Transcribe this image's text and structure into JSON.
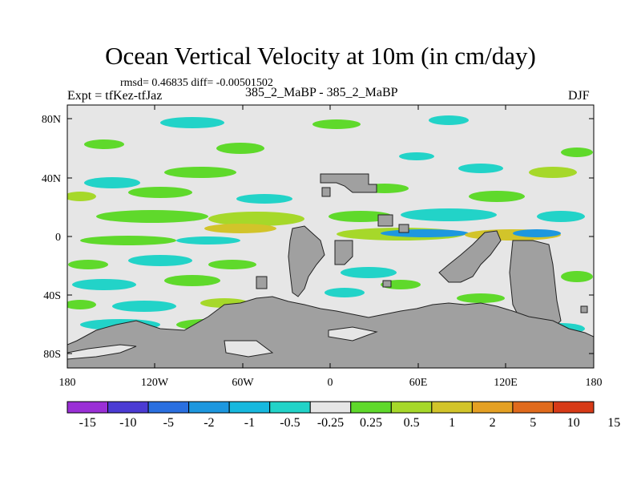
{
  "title": "Ocean Vertical Velocity at 10m (in cm/day)",
  "stats": "rmsd= 0.46835 diff= -0.00501502",
  "expt": "Expt = tfKez-tfJaz",
  "diff_label": "385_2_MaBP - 385_2_MaBP",
  "season": "DJF",
  "lat_ticks": [
    "80N",
    "40N",
    "0",
    "40S",
    "80S"
  ],
  "lon_ticks": [
    "180",
    "120W",
    "60W",
    "0",
    "60E",
    "120E",
    "180"
  ],
  "colorbar": {
    "colors": [
      "#9a2fd6",
      "#4b3bd3",
      "#2a6fe0",
      "#1d97df",
      "#17b8de",
      "#22d3c8",
      "#e6e6e6",
      "#5fd92b",
      "#a6d82a",
      "#d2c42a",
      "#e4a023",
      "#e06a1c",
      "#d73a17"
    ],
    "labels": [
      "-15",
      "-10",
      "-5",
      "-2",
      "-1",
      "-0.5",
      "-0.25",
      "0.25",
      "0.5",
      "1",
      "2",
      "5",
      "10",
      "15"
    ]
  },
  "land_color": "#a0a0a0",
  "ocean_color": "#e6e6e6"
}
